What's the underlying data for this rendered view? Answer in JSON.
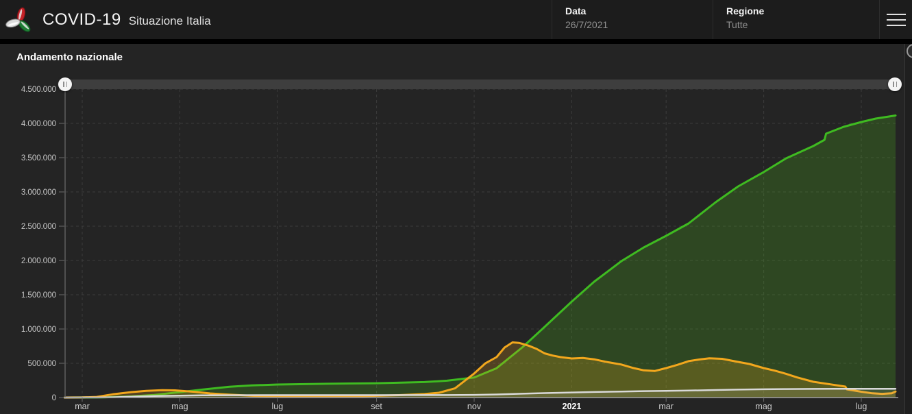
{
  "header": {
    "logo": "triskelion-italy-icon",
    "app_title": "COVID-19",
    "app_subtitle": "Situazione Italia",
    "fields": [
      {
        "label": "Data",
        "value": "26/7/2021"
      },
      {
        "label": "Regione",
        "value": "Tutte"
      }
    ],
    "menu_icon": "hamburger-menu",
    "colors": {
      "background": "#1c1c1c",
      "label": "#f2f2f2",
      "value": "#8f8f8f"
    }
  },
  "panel": {
    "title": "Andamento nazionale",
    "background": "#242424",
    "expand_icon": "circle-button"
  },
  "slider": {
    "type": "time-range",
    "handle_icon": "grip-pause",
    "track_color": "#3e3e3e",
    "handle_color": "#f4f4f4"
  },
  "chart_data": {
    "type": "area",
    "title": "Andamento nazionale",
    "grid": {
      "style": "dashed",
      "color": "#3d3d3d"
    },
    "x_axis": {
      "start": "2020-02-19",
      "end": "2021-07-26",
      "ticks": [
        {
          "label": "mar",
          "date": "2020-03-01",
          "bold": false
        },
        {
          "label": "mag",
          "date": "2020-05-01",
          "bold": false
        },
        {
          "label": "lug",
          "date": "2020-07-01",
          "bold": false
        },
        {
          "label": "set",
          "date": "2020-09-01",
          "bold": false
        },
        {
          "label": "nov",
          "date": "2020-11-01",
          "bold": false
        },
        {
          "label": "2021",
          "date": "2021-01-01",
          "bold": true
        },
        {
          "label": "mar",
          "date": "2021-03-01",
          "bold": false
        },
        {
          "label": "mag",
          "date": "2021-05-01",
          "bold": false
        },
        {
          "label": "lug",
          "date": "2021-07-01",
          "bold": false
        }
      ]
    },
    "y_axis": {
      "min": 0,
      "max": 4500000,
      "step": 500000,
      "labels": [
        "0",
        "500.000",
        "1.000.000",
        "1.500.000",
        "2.000.000",
        "2.500.000",
        "3.000.000",
        "3.500.000",
        "4.000.000",
        "4.500.000"
      ]
    },
    "series": [
      {
        "id": "green",
        "name": "green-line",
        "color": "#3fbb21",
        "fill": "rgba(76,175,29,0.25)",
        "stroke_width": 3,
        "points": [
          [
            "2020-02-19",
            0
          ],
          [
            "2020-03-01",
            1000
          ],
          [
            "2020-03-15",
            2900
          ],
          [
            "2020-04-01",
            17000
          ],
          [
            "2020-04-15",
            38000
          ],
          [
            "2020-05-01",
            79000
          ],
          [
            "2020-05-15",
            116000
          ],
          [
            "2020-06-01",
            158000
          ],
          [
            "2020-06-15",
            177000
          ],
          [
            "2020-07-01",
            190000
          ],
          [
            "2020-08-01",
            201000
          ],
          [
            "2020-09-01",
            209000
          ],
          [
            "2020-10-01",
            226000
          ],
          [
            "2020-10-15",
            246000
          ],
          [
            "2020-11-01",
            292000
          ],
          [
            "2020-11-15",
            428000
          ],
          [
            "2020-12-01",
            730000
          ],
          [
            "2020-12-15",
            1030000
          ],
          [
            "2021-01-01",
            1400000
          ],
          [
            "2021-01-15",
            1690000
          ],
          [
            "2021-02-01",
            1990000
          ],
          [
            "2021-02-15",
            2190000
          ],
          [
            "2021-03-01",
            2360000
          ],
          [
            "2021-03-15",
            2540000
          ],
          [
            "2021-04-01",
            2850000
          ],
          [
            "2021-04-15",
            3080000
          ],
          [
            "2021-05-01",
            3290000
          ],
          [
            "2021-05-15",
            3490000
          ],
          [
            "2021-06-01",
            3670000
          ],
          [
            "2021-06-08",
            3760000
          ],
          [
            "2021-06-09",
            3850000
          ],
          [
            "2021-06-20",
            3950000
          ],
          [
            "2021-07-01",
            4020000
          ],
          [
            "2021-07-10",
            4070000
          ],
          [
            "2021-07-26",
            4115000
          ]
        ]
      },
      {
        "id": "orange",
        "name": "orange-line",
        "color": "#f2a71d",
        "fill": "rgba(242,167,29,0.22)",
        "stroke_width": 3,
        "points": [
          [
            "2020-02-19",
            0
          ],
          [
            "2020-03-01",
            1600
          ],
          [
            "2020-03-10",
            8500
          ],
          [
            "2020-03-20",
            47000
          ],
          [
            "2020-04-01",
            80500
          ],
          [
            "2020-04-10",
            98000
          ],
          [
            "2020-04-20",
            108000
          ],
          [
            "2020-04-28",
            105000
          ],
          [
            "2020-05-10",
            84000
          ],
          [
            "2020-05-20",
            60000
          ],
          [
            "2020-06-01",
            42000
          ],
          [
            "2020-06-15",
            26000
          ],
          [
            "2020-07-01",
            15000
          ],
          [
            "2020-07-15",
            12500
          ],
          [
            "2020-08-01",
            12500
          ],
          [
            "2020-08-15",
            14000
          ],
          [
            "2020-09-01",
            26000
          ],
          [
            "2020-09-15",
            35000
          ],
          [
            "2020-10-01",
            51000
          ],
          [
            "2020-10-10",
            70000
          ],
          [
            "2020-10-20",
            134000
          ],
          [
            "2020-11-01",
            351000
          ],
          [
            "2020-11-08",
            499000
          ],
          [
            "2020-11-15",
            590000
          ],
          [
            "2020-11-20",
            730000
          ],
          [
            "2020-11-25",
            805000
          ],
          [
            "2020-11-29",
            798000
          ],
          [
            "2020-12-05",
            757000
          ],
          [
            "2020-12-10",
            710000
          ],
          [
            "2020-12-15",
            645000
          ],
          [
            "2020-12-20",
            613000
          ],
          [
            "2020-12-25",
            590000
          ],
          [
            "2021-01-01",
            570000
          ],
          [
            "2021-01-08",
            577000
          ],
          [
            "2021-01-15",
            558000
          ],
          [
            "2021-01-22",
            523000
          ],
          [
            "2021-02-01",
            482000
          ],
          [
            "2021-02-08",
            434000
          ],
          [
            "2021-02-15",
            397000
          ],
          [
            "2021-02-22",
            388000
          ],
          [
            "2021-03-01",
            430000
          ],
          [
            "2021-03-08",
            477000
          ],
          [
            "2021-03-15",
            531000
          ],
          [
            "2021-03-22",
            556000
          ],
          [
            "2021-03-28",
            573000
          ],
          [
            "2021-04-05",
            565000
          ],
          [
            "2021-04-15",
            520000
          ],
          [
            "2021-04-22",
            490000
          ],
          [
            "2021-05-01",
            430000
          ],
          [
            "2021-05-08",
            392000
          ],
          [
            "2021-05-15",
            346000
          ],
          [
            "2021-05-22",
            293000
          ],
          [
            "2021-06-01",
            230000
          ],
          [
            "2021-06-12",
            192000
          ],
          [
            "2021-06-21",
            160000
          ],
          [
            "2021-06-22",
            120000
          ],
          [
            "2021-07-01",
            85000
          ],
          [
            "2021-07-08",
            62000
          ],
          [
            "2021-07-14",
            54000
          ],
          [
            "2021-07-20",
            63000
          ],
          [
            "2021-07-26",
            88000
          ]
        ]
      },
      {
        "id": "white",
        "name": "white-line",
        "color": "#d9d9d9",
        "fill": "rgba(217,217,217,0.12)",
        "stroke_width": 2.5,
        "points": [
          [
            "2020-02-19",
            0
          ],
          [
            "2020-03-10",
            630
          ],
          [
            "2020-03-20",
            4000
          ],
          [
            "2020-04-01",
            13200
          ],
          [
            "2020-04-15",
            21600
          ],
          [
            "2020-05-01",
            28200
          ],
          [
            "2020-05-15",
            31600
          ],
          [
            "2020-06-01",
            33500
          ],
          [
            "2020-07-01",
            34800
          ],
          [
            "2020-08-01",
            35200
          ],
          [
            "2020-09-01",
            35500
          ],
          [
            "2020-10-01",
            36000
          ],
          [
            "2020-10-15",
            36500
          ],
          [
            "2020-11-01",
            38800
          ],
          [
            "2020-11-15",
            45200
          ],
          [
            "2020-12-01",
            56400
          ],
          [
            "2020-12-15",
            65000
          ],
          [
            "2021-01-01",
            74200
          ],
          [
            "2021-01-15",
            81300
          ],
          [
            "2021-02-01",
            88300
          ],
          [
            "2021-02-15",
            94000
          ],
          [
            "2021-03-01",
            97700
          ],
          [
            "2021-03-15",
            102100
          ],
          [
            "2021-04-01",
            110300
          ],
          [
            "2021-04-15",
            115900
          ],
          [
            "2021-05-01",
            120800
          ],
          [
            "2021-05-15",
            124000
          ],
          [
            "2021-06-01",
            126000
          ],
          [
            "2021-06-15",
            127000
          ],
          [
            "2021-07-01",
            127500
          ],
          [
            "2021-07-26",
            128000
          ]
        ]
      }
    ]
  }
}
